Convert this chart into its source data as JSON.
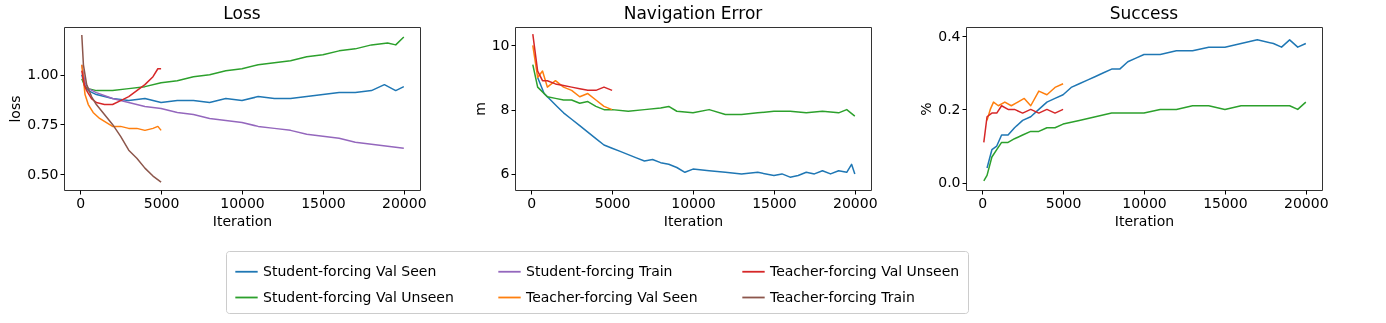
{
  "chart_data": [
    {
      "type": "line",
      "title": "Loss",
      "xlabel": "Iteration",
      "ylabel": "loss",
      "xlim": [
        -1000,
        21000
      ],
      "ylim": [
        0.42,
        1.24
      ],
      "xticks": [
        0,
        5000,
        10000,
        15000,
        20000
      ],
      "yticks": [
        {
          "value": 0.5,
          "label": "0.50"
        },
        {
          "value": 0.75,
          "label": "0.75"
        },
        {
          "value": 1.0,
          "label": "1.00"
        }
      ],
      "grid": false,
      "legend": "bottom",
      "series": [
        {
          "name": "Student-forcing Val Seen",
          "color": "#1f77b4",
          "x": [
            100,
            300,
            500,
            1000,
            1500,
            2000,
            3000,
            4000,
            5000,
            6000,
            7000,
            8000,
            9000,
            10000,
            11000,
            12000,
            13000,
            14000,
            15000,
            16000,
            17000,
            18000,
            18800,
            19500,
            20000
          ],
          "values": [
            1.0,
            0.94,
            0.92,
            0.9,
            0.89,
            0.88,
            0.87,
            0.88,
            0.86,
            0.87,
            0.87,
            0.86,
            0.88,
            0.87,
            0.89,
            0.88,
            0.88,
            0.89,
            0.9,
            0.91,
            0.91,
            0.92,
            0.95,
            0.92,
            0.94
          ]
        },
        {
          "name": "Student-forcing Val Unseen",
          "color": "#2ca02c",
          "x": [
            100,
            300,
            500,
            1000,
            2000,
            3000,
            4000,
            5000,
            6000,
            7000,
            8000,
            9000,
            10000,
            11000,
            12000,
            13000,
            14000,
            15000,
            16000,
            17000,
            18000,
            19000,
            19500,
            20000
          ],
          "values": [
            0.98,
            0.94,
            0.93,
            0.92,
            0.92,
            0.93,
            0.94,
            0.96,
            0.97,
            0.99,
            1.0,
            1.02,
            1.03,
            1.05,
            1.06,
            1.07,
            1.09,
            1.1,
            1.12,
            1.13,
            1.15,
            1.16,
            1.15,
            1.19
          ]
        },
        {
          "name": "Student-forcing Train",
          "color": "#9467bd",
          "x": [
            100,
            300,
            500,
            1000,
            2000,
            3000,
            4000,
            5000,
            6000,
            7000,
            8000,
            9000,
            10000,
            11000,
            12000,
            13000,
            14000,
            15000,
            16000,
            17000,
            18000,
            19000,
            20000
          ],
          "values": [
            1.05,
            0.96,
            0.93,
            0.91,
            0.88,
            0.86,
            0.84,
            0.83,
            0.81,
            0.8,
            0.78,
            0.77,
            0.76,
            0.74,
            0.73,
            0.72,
            0.7,
            0.69,
            0.68,
            0.66,
            0.65,
            0.64,
            0.63
          ]
        },
        {
          "name": "Teacher-forcing Val Seen",
          "color": "#ff7f0e",
          "x": [
            100,
            300,
            500,
            800,
            1200,
            1600,
            2000,
            2500,
            3000,
            3500,
            4000,
            4500,
            4800,
            5000
          ],
          "values": [
            1.05,
            0.9,
            0.85,
            0.81,
            0.78,
            0.76,
            0.74,
            0.74,
            0.73,
            0.73,
            0.72,
            0.73,
            0.74,
            0.72
          ]
        },
        {
          "name": "Teacher-forcing Val Unseen",
          "color": "#d62728",
          "x": [
            100,
            250,
            400,
            700,
            1000,
            1500,
            2000,
            2500,
            3000,
            3500,
            4000,
            4500,
            4800,
            5000
          ],
          "values": [
            1.02,
            0.95,
            0.92,
            0.88,
            0.86,
            0.85,
            0.85,
            0.87,
            0.89,
            0.92,
            0.95,
            0.99,
            1.03,
            1.03
          ]
        },
        {
          "name": "Teacher-forcing Train",
          "color": "#8c564b",
          "x": [
            100,
            200,
            400,
            700,
            1000,
            1500,
            2000,
            2500,
            3000,
            3500,
            4000,
            4500,
            5000
          ],
          "values": [
            1.2,
            1.05,
            0.95,
            0.89,
            0.85,
            0.8,
            0.75,
            0.69,
            0.62,
            0.58,
            0.53,
            0.49,
            0.46
          ]
        }
      ]
    },
    {
      "type": "line",
      "title": "Navigation Error",
      "xlabel": "Iteration",
      "ylabel": "m",
      "xlim": [
        -1000,
        21000
      ],
      "ylim": [
        5.5,
        10.57
      ],
      "xticks": [
        0,
        5000,
        10000,
        15000,
        20000
      ],
      "yticks": [
        6,
        8,
        10
      ],
      "grid": false,
      "series": [
        {
          "name": "Student-forcing Val Seen",
          "color": "#1f77b4",
          "x": [
            400,
            800,
            1200,
            1600,
            2000,
            2500,
            3000,
            3500,
            4000,
            4500,
            5000,
            5500,
            6000,
            6500,
            7000,
            7500,
            8000,
            8500,
            9000,
            9500,
            10000,
            11000,
            12000,
            13000,
            14000,
            15000,
            15500,
            16000,
            16500,
            17000,
            17500,
            18000,
            18500,
            19000,
            19500,
            19800,
            20000
          ],
          "values": [
            9.0,
            8.5,
            8.3,
            8.1,
            7.9,
            7.7,
            7.5,
            7.3,
            7.1,
            6.9,
            6.8,
            6.7,
            6.6,
            6.5,
            6.4,
            6.45,
            6.35,
            6.3,
            6.2,
            6.05,
            6.15,
            6.1,
            6.05,
            6.0,
            6.05,
            5.95,
            6.0,
            5.9,
            5.95,
            6.05,
            6.0,
            6.1,
            6.0,
            6.1,
            6.05,
            6.3,
            6.0
          ]
        },
        {
          "name": "Student-forcing Val Unseen",
          "color": "#2ca02c",
          "x": [
            100,
            400,
            1000,
            1500,
            2000,
            2500,
            3000,
            3500,
            4000,
            4500,
            5000,
            6000,
            7000,
            8000,
            8500,
            9000,
            10000,
            11000,
            12000,
            13000,
            14000,
            15000,
            16000,
            17000,
            18000,
            19000,
            19500,
            20000
          ],
          "values": [
            9.4,
            8.7,
            8.4,
            8.35,
            8.3,
            8.3,
            8.2,
            8.25,
            8.1,
            8.0,
            8.0,
            7.95,
            8.0,
            8.05,
            8.1,
            7.95,
            7.9,
            8.0,
            7.85,
            7.85,
            7.9,
            7.95,
            7.95,
            7.9,
            7.95,
            7.9,
            8.0,
            7.8
          ]
        },
        {
          "name": "Teacher-forcing Val Seen",
          "color": "#ff7f0e",
          "x": [
            100,
            400,
            700,
            1000,
            1500,
            2000,
            2500,
            3000,
            3500,
            4000,
            4500,
            5000
          ],
          "values": [
            10.0,
            9.0,
            9.2,
            8.7,
            8.9,
            8.7,
            8.6,
            8.4,
            8.5,
            8.3,
            8.1,
            8.0
          ]
        },
        {
          "name": "Teacher-forcing Val Unseen",
          "color": "#d62728",
          "x": [
            100,
            400,
            700,
            1000,
            1500,
            2000,
            2500,
            3000,
            3500,
            4000,
            4500,
            5000
          ],
          "values": [
            10.35,
            9.2,
            8.9,
            8.9,
            8.8,
            8.75,
            8.7,
            8.65,
            8.6,
            8.6,
            8.7,
            8.6
          ]
        }
      ]
    },
    {
      "type": "line",
      "title": "Success",
      "xlabel": "Iteration",
      "ylabel": "%",
      "xlim": [
        -1000,
        21000
      ],
      "ylim": [
        -0.02,
        0.425
      ],
      "xticks": [
        0,
        5000,
        10000,
        15000,
        20000
      ],
      "yticks": [
        {
          "value": 0,
          "label": "0.0"
        },
        {
          "value": 0.2,
          "label": "0.2"
        },
        {
          "value": 0.4,
          "label": "0.4"
        }
      ],
      "grid": false,
      "series": [
        {
          "name": "Student-forcing Val Seen",
          "color": "#1f77b4",
          "x": [
            300,
            600,
            900,
            1200,
            1600,
            2000,
            2500,
            3000,
            3500,
            4000,
            4500,
            5000,
            5500,
            6000,
            6500,
            7000,
            7500,
            8000,
            8500,
            9000,
            9500,
            10000,
            11000,
            12000,
            13000,
            14000,
            15000,
            16000,
            17000,
            18000,
            18500,
            19000,
            19500,
            20000
          ],
          "values": [
            0.04,
            0.09,
            0.1,
            0.13,
            0.13,
            0.15,
            0.17,
            0.18,
            0.2,
            0.22,
            0.23,
            0.24,
            0.26,
            0.27,
            0.28,
            0.29,
            0.3,
            0.31,
            0.31,
            0.33,
            0.34,
            0.35,
            0.35,
            0.36,
            0.36,
            0.37,
            0.37,
            0.38,
            0.39,
            0.38,
            0.37,
            0.39,
            0.37,
            0.38
          ]
        },
        {
          "name": "Student-forcing Val Unseen",
          "color": "#2ca02c",
          "x": [
            100,
            300,
            600,
            900,
            1200,
            1600,
            2000,
            2500,
            3000,
            3500,
            4000,
            4500,
            5000,
            6000,
            7000,
            8000,
            9000,
            10000,
            11000,
            12000,
            13000,
            14000,
            15000,
            16000,
            17000,
            18000,
            19000,
            19500,
            20000
          ],
          "values": [
            0.005,
            0.02,
            0.07,
            0.09,
            0.11,
            0.11,
            0.12,
            0.13,
            0.14,
            0.14,
            0.15,
            0.15,
            0.16,
            0.17,
            0.18,
            0.19,
            0.19,
            0.19,
            0.2,
            0.2,
            0.21,
            0.21,
            0.2,
            0.21,
            0.21,
            0.21,
            0.21,
            0.2,
            0.22
          ]
        },
        {
          "name": "Teacher-forcing Val Seen",
          "color": "#ff7f0e",
          "x": [
            300,
            500,
            700,
            1000,
            1400,
            1800,
            2200,
            2600,
            3000,
            3500,
            4000,
            4500,
            5000
          ],
          "values": [
            0.17,
            0.2,
            0.22,
            0.21,
            0.22,
            0.21,
            0.22,
            0.23,
            0.21,
            0.25,
            0.24,
            0.26,
            0.27
          ]
        },
        {
          "name": "Teacher-forcing Val Unseen",
          "color": "#d62728",
          "x": [
            100,
            300,
            600,
            900,
            1200,
            1600,
            2000,
            2500,
            3000,
            3500,
            4000,
            4500,
            5000
          ],
          "values": [
            0.11,
            0.18,
            0.19,
            0.19,
            0.21,
            0.2,
            0.2,
            0.19,
            0.2,
            0.19,
            0.2,
            0.19,
            0.2
          ]
        }
      ]
    }
  ]
}
